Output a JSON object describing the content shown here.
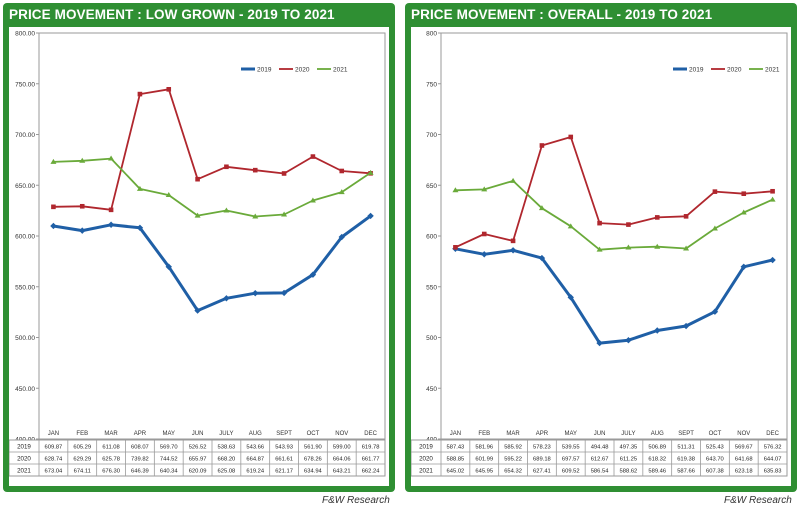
{
  "charts": [
    {
      "title": "PRICE MOVEMENT : LOW GROWN - 2019 TO 2021",
      "footer": "F&W Research"
    },
    {
      "title": "PRICE MOVEMENT : OVERALL - 2019 TO 2021",
      "footer": "F&W Research"
    }
  ],
  "colors": {
    "2019": "#1f5fa6",
    "2020": "#b0272e",
    "2021": "#6aaa3a",
    "panel": "#2f8f33"
  },
  "chart_data": [
    {
      "type": "line",
      "title": "PRICE MOVEMENT : LOW GROWN - 2019 TO 2021",
      "categories": [
        "JAN",
        "FEB",
        "MAR",
        "APR",
        "MAY",
        "JUN",
        "JULY",
        "AUG",
        "SEPT",
        "OCT",
        "NOV",
        "DEC"
      ],
      "ylim": [
        400,
        800
      ],
      "yticks": [
        "800.00",
        "750.00",
        "700.00",
        "650.00",
        "600.00",
        "550.00",
        "500.00",
        "450.00",
        "400.00"
      ],
      "legend_position": "top-right",
      "grid": false,
      "series": [
        {
          "name": "2019",
          "values": [
            609.87,
            605.29,
            611.08,
            608.07,
            569.7,
            526.52,
            538.63,
            543.66,
            543.93,
            561.9,
            599.0,
            619.78
          ],
          "labels": [
            "609.87",
            "605.29",
            "611.08",
            "608.07",
            "569.70",
            "526.52",
            "538.63",
            "543.66",
            "543.93",
            "561.90",
            "599.00",
            "619.78"
          ]
        },
        {
          "name": "2020",
          "values": [
            628.74,
            629.29,
            625.78,
            739.82,
            744.52,
            655.97,
            668.2,
            664.87,
            661.61,
            678.26,
            664.06,
            661.77
          ],
          "labels": [
            "628.74",
            "629.29",
            "625.78",
            "739.82",
            "744.52",
            "655.97",
            "668.20",
            "664.87",
            "661.61",
            "678.26",
            "664.06",
            "661.77"
          ]
        },
        {
          "name": "2021",
          "values": [
            673.04,
            674.11,
            676.3,
            646.39,
            640.34,
            620.09,
            625.08,
            619.24,
            621.17,
            634.94,
            643.21,
            662.24
          ],
          "labels": [
            "673.04",
            "674.11",
            "676.30",
            "646.39",
            "640.34",
            "620.09",
            "625.08",
            "619.24",
            "621.17",
            "634.94",
            "643.21",
            "662.24"
          ]
        }
      ]
    },
    {
      "type": "line",
      "title": "PRICE MOVEMENT : OVERALL - 2019 TO 2021",
      "categories": [
        "JAN",
        "FEB",
        "MAR",
        "APR",
        "MAY",
        "JUN",
        "JULY",
        "AUG",
        "SEPT",
        "OCT",
        "NOV",
        "DEC"
      ],
      "ylim": [
        400,
        800
      ],
      "yticks": [
        "800",
        "750",
        "700",
        "650",
        "600",
        "550",
        "500",
        "450",
        "400"
      ],
      "legend_position": "top-right",
      "grid": false,
      "series": [
        {
          "name": "2019",
          "values": [
            587.43,
            581.96,
            585.92,
            578.23,
            539.55,
            494.48,
            497.35,
            506.89,
            511.31,
            525.43,
            569.67,
            576.32
          ],
          "labels": [
            "587.43",
            "581.96",
            "585.92",
            "578.23",
            "539.55",
            "494.48",
            "497.35",
            "506.89",
            "511.31",
            "525.43",
            "569.67",
            "576.32"
          ]
        },
        {
          "name": "2020",
          "values": [
            588.85,
            601.99,
            595.22,
            689.18,
            697.57,
            612.67,
            611.25,
            618.32,
            619.38,
            643.7,
            641.68,
            644.07
          ],
          "labels": [
            "588.85",
            "601.99",
            "595.22",
            "689.18",
            "697.57",
            "612.67",
            "611.25",
            "618.32",
            "619.38",
            "643.70",
            "641.68",
            "644.07"
          ]
        },
        {
          "name": "2021",
          "values": [
            645.02,
            645.95,
            654.32,
            627.41,
            609.52,
            586.54,
            588.62,
            589.46,
            587.66,
            607.38,
            623.18,
            635.83
          ],
          "labels": [
            "645.02",
            "645.95",
            "654.32",
            "627.41",
            "609.52",
            "586.54",
            "588.62",
            "589.46",
            "587.66",
            "607.38",
            "623.18",
            "635.83"
          ]
        }
      ]
    }
  ]
}
